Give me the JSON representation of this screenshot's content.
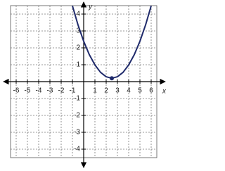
{
  "chart_data": {
    "type": "line",
    "x_label": "x",
    "y_label": "y",
    "x": [
      -1,
      -0.5,
      0,
      0.5,
      1,
      1.5,
      2,
      2.5,
      3,
      3.5,
      4,
      4.5,
      5,
      5.5,
      6
    ],
    "series": [
      {
        "color": "#1f2a6b",
        "values": [
          4.49,
          3.35,
          2.39,
          1.6,
          0.99,
          0.55,
          0.29,
          0.2,
          0.29,
          0.55,
          0.99,
          1.6,
          2.39,
          3.35,
          4.49
        ]
      }
    ],
    "vertex": {
      "x": 2.5,
      "y": 0.2,
      "color": "#1f2a6b"
    },
    "xlim": [
      -6.5,
      6.5
    ],
    "ylim": [
      -4.5,
      4.5
    ],
    "xticks": [
      -6,
      -5,
      -4,
      -3,
      -2,
      -1,
      1,
      2,
      3,
      4,
      5,
      6
    ],
    "yticks": [
      -4,
      -3,
      -2,
      -1,
      1,
      2,
      3,
      4
    ],
    "grid": true
  }
}
